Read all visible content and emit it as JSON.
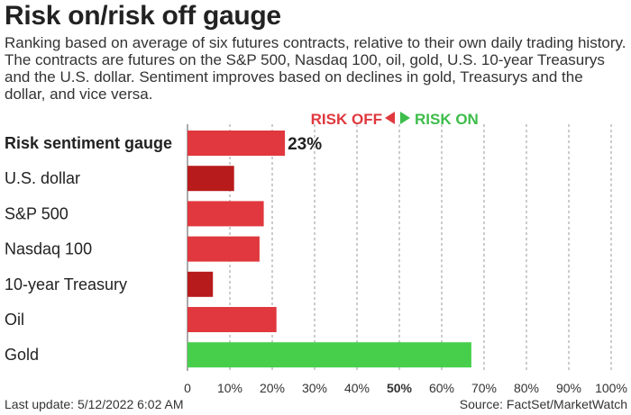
{
  "title": "Risk on/risk off gauge",
  "subtitle": "Ranking based on average of six futures contracts, relative to their own daily trading history. The contracts are futures on the S&P 500, Nasdaq 100, oil, gold, U.S. 10-year Treasurys and the U.S. dollar. Sentiment improves based on declines in gold, Treasurys and the dollar, and vice versa.",
  "footer": {
    "last_update": "Last update: 5/12/2022 6:02 AM",
    "source": "Source: FactSet/MarketWatch"
  },
  "chart_data": {
    "type": "bar",
    "orientation": "horizontal",
    "legend": {
      "risk_off": "RISK OFF",
      "risk_on": "RISK ON",
      "risk_off_color": "#e0383e",
      "risk_on_color": "#3dbd4a"
    },
    "categories": [
      "Risk sentiment gauge",
      "U.S. dollar",
      "S&P 500",
      "Nasdaq 100",
      "10-year Treasury",
      "Oil",
      "Gold"
    ],
    "values": [
      23,
      11,
      18,
      17,
      6,
      21,
      67
    ],
    "colors": [
      "#e0383e",
      "#b81b1b",
      "#e0383e",
      "#e0383e",
      "#b81b1b",
      "#e0383e",
      "#47cf4c"
    ],
    "value_labels": [
      "23%",
      "",
      "",
      "",
      "",
      "",
      ""
    ],
    "xlim": [
      0,
      100
    ],
    "x_ticks": [
      "0",
      "10%",
      "20%",
      "30%",
      "40%",
      "50%",
      "60%",
      "70%",
      "80%",
      "90%",
      "100%"
    ],
    "x_tick_values": [
      0,
      10,
      20,
      30,
      40,
      50,
      60,
      70,
      80,
      90,
      100
    ],
    "grid": true
  }
}
